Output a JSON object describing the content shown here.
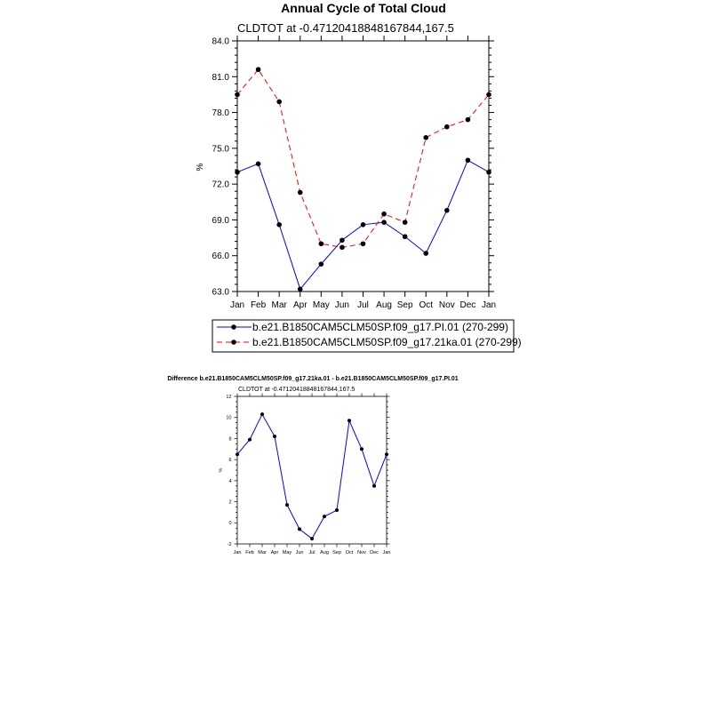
{
  "chart_data": [
    {
      "type": "line",
      "title": "Annual Cycle of Total Cloud",
      "subtitle": "CLDTOT at -0.47120418848167844,167.5",
      "xlabel": "",
      "ylabel": "%",
      "categories": [
        "Jan",
        "Feb",
        "Mar",
        "Apr",
        "May",
        "Jun",
        "Jul",
        "Aug",
        "Sep",
        "Oct",
        "Nov",
        "Dec",
        "Jan"
      ],
      "ylim": [
        63.0,
        84.0
      ],
      "yticks": [
        "63.0",
        "66.0",
        "69.0",
        "72.0",
        "75.0",
        "78.0",
        "81.0",
        "84.0"
      ],
      "grid": false,
      "legend_position": "bottom",
      "series": [
        {
          "name": "b.e21.B1850CAM5CLM50SP.f09_g17.PI.01 (270-299)",
          "color": "#0000ff",
          "dash": "solid",
          "values": [
            73.0,
            73.7,
            68.6,
            63.2,
            65.3,
            67.3,
            68.6,
            68.8,
            67.6,
            66.2,
            69.8,
            74.0,
            73.0
          ]
        },
        {
          "name": "b.e21.B1850CAM5CLM50SP.f09_g17.21ka.01 (270-299)",
          "color": "#ff0000",
          "dash": "dashed",
          "values": [
            79.5,
            81.6,
            78.9,
            71.3,
            67.0,
            66.7,
            67.0,
            69.5,
            68.8,
            75.9,
            76.8,
            77.4,
            79.5
          ]
        }
      ]
    },
    {
      "type": "line",
      "title": "Difference b.e21.B1850CAM5CLM50SP.f09_g17.21ka.01 - b.e21.B1850CAM5CLM50SP.f09_g17.PI.01",
      "subtitle": "CLDTOT at -0.47120418848167844,167.5",
      "xlabel": "",
      "ylabel": "%",
      "categories": [
        "Jan",
        "Feb",
        "Mar",
        "Apr",
        "May",
        "Jun",
        "Jul",
        "Aug",
        "Sep",
        "Oct",
        "Nov",
        "Dec",
        "Jan"
      ],
      "ylim": [
        -2,
        12
      ],
      "yticks": [
        "-2",
        "0",
        "2",
        "4",
        "6",
        "8",
        "10",
        "12"
      ],
      "grid": false,
      "series": [
        {
          "color": "#0000ff",
          "values": [
            6.5,
            7.9,
            10.3,
            8.2,
            1.7,
            -0.6,
            -1.5,
            0.6,
            1.2,
            9.7,
            7.0,
            3.5,
            6.5
          ]
        }
      ]
    }
  ]
}
